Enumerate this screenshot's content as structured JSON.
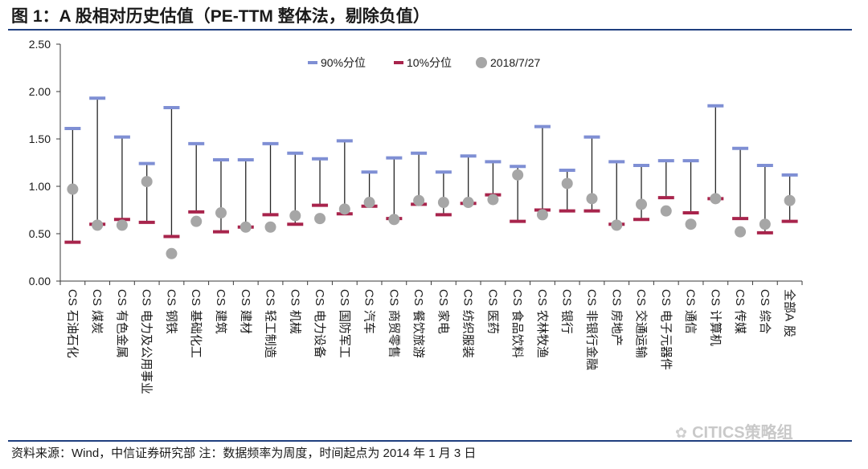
{
  "title": "图 1：A 股相对历史估值（PE-TTM 整体法，剔除负值）",
  "footer": "资料来源：Wind，中信证券研究部   注：数据频率为周度，时间起点为 2014 年 1 月 3 日",
  "watermark": "CITICS策略组",
  "watermark_icon": "wechat-icon",
  "colors": {
    "p90": "#7f8fd4",
    "p10": "#a8244c",
    "current": "#a6a6a6",
    "whisker": "#262626",
    "rule": "#1f3f7f"
  },
  "chart_data": {
    "type": "scatter",
    "title": "A 股相对历史估值（PE-TTM 整体法，剔除负值）",
    "ylim": [
      0,
      2.5
    ],
    "yticks": [
      "0.00",
      "0.50",
      "1.00",
      "1.50",
      "2.00",
      "2.50"
    ],
    "ytick_values": [
      0,
      0.5,
      1.0,
      1.5,
      2.0,
      2.5
    ],
    "legend": [
      "90%分位",
      "10%分位",
      "2018/7/27"
    ],
    "categories": [
      "CS石油石化",
      "CS煤炭",
      "CS有色金属",
      "CS电力及公用事业",
      "CS钢铁",
      "CS基础化工",
      "CS建筑",
      "CS建材",
      "CS轻工制造",
      "CS机械",
      "CS电力设备",
      "CS国防军工",
      "CS汽车",
      "CS商贸零售",
      "CS餐饮旅游",
      "CS家电",
      "CS纺织服装",
      "CS医药",
      "CS食品饮料",
      "CS农林牧渔",
      "CS银行",
      "CS非银行金融",
      "CS房地产",
      "CS交通运输",
      "CS电子元器件",
      "CS通信",
      "CS计算机",
      "CS传媒",
      "CS综合",
      "全部A股"
    ],
    "category_labels": [
      [
        "CS",
        "石油石化"
      ],
      [
        "CS",
        "煤炭"
      ],
      [
        "CS",
        "有色金属"
      ],
      [
        "CS",
        "电力及公用事业"
      ],
      [
        "CS",
        "钢铁"
      ],
      [
        "CS",
        "基础化工"
      ],
      [
        "CS",
        "建筑"
      ],
      [
        "CS",
        "建材"
      ],
      [
        "CS",
        "轻工制造"
      ],
      [
        "CS",
        "机械"
      ],
      [
        "CS",
        "电力设备"
      ],
      [
        "CS",
        "国防军工"
      ],
      [
        "CS",
        "汽车"
      ],
      [
        "CS",
        "商贸零售"
      ],
      [
        "CS",
        "餐饮旅游"
      ],
      [
        "CS",
        "家电"
      ],
      [
        "CS",
        "纺织服装"
      ],
      [
        "CS",
        "医药"
      ],
      [
        "CS",
        "食品饮料"
      ],
      [
        "CS",
        "农林牧渔"
      ],
      [
        "CS",
        "银行"
      ],
      [
        "CS",
        "非银行金融"
      ],
      [
        "CS",
        "房地产"
      ],
      [
        "CS",
        "交通运输"
      ],
      [
        "CS",
        "电子元器件"
      ],
      [
        "CS",
        "通信"
      ],
      [
        "CS",
        "计算机"
      ],
      [
        "CS",
        "传媒"
      ],
      [
        "CS",
        "综合"
      ],
      [
        "全部A",
        "股"
      ]
    ],
    "series": [
      {
        "name": "90%分位",
        "values": [
          1.61,
          1.93,
          1.52,
          1.24,
          1.83,
          1.45,
          1.28,
          1.28,
          1.45,
          1.35,
          1.29,
          1.48,
          1.15,
          1.3,
          1.35,
          1.15,
          1.32,
          1.26,
          1.21,
          1.63,
          1.17,
          1.52,
          1.26,
          1.22,
          1.27,
          1.27,
          1.85,
          1.4,
          1.22,
          1.12
        ]
      },
      {
        "name": "10%分位",
        "values": [
          0.41,
          0.6,
          0.65,
          0.62,
          0.47,
          0.73,
          0.52,
          0.57,
          0.7,
          0.6,
          0.8,
          0.71,
          0.79,
          0.66,
          0.81,
          0.7,
          0.82,
          0.91,
          0.63,
          0.75,
          0.74,
          0.74,
          0.6,
          0.65,
          0.88,
          0.72,
          0.87,
          0.66,
          0.51,
          0.63
        ]
      },
      {
        "name": "2018/7/27",
        "values": [
          0.97,
          0.59,
          0.59,
          1.05,
          0.29,
          0.63,
          0.72,
          0.57,
          0.57,
          0.69,
          0.66,
          0.76,
          0.83,
          0.65,
          0.85,
          0.83,
          0.83,
          0.86,
          1.12,
          0.7,
          1.03,
          0.87,
          0.59,
          0.81,
          0.74,
          0.6,
          0.87,
          0.52,
          0.6,
          0.85
        ]
      }
    ]
  }
}
